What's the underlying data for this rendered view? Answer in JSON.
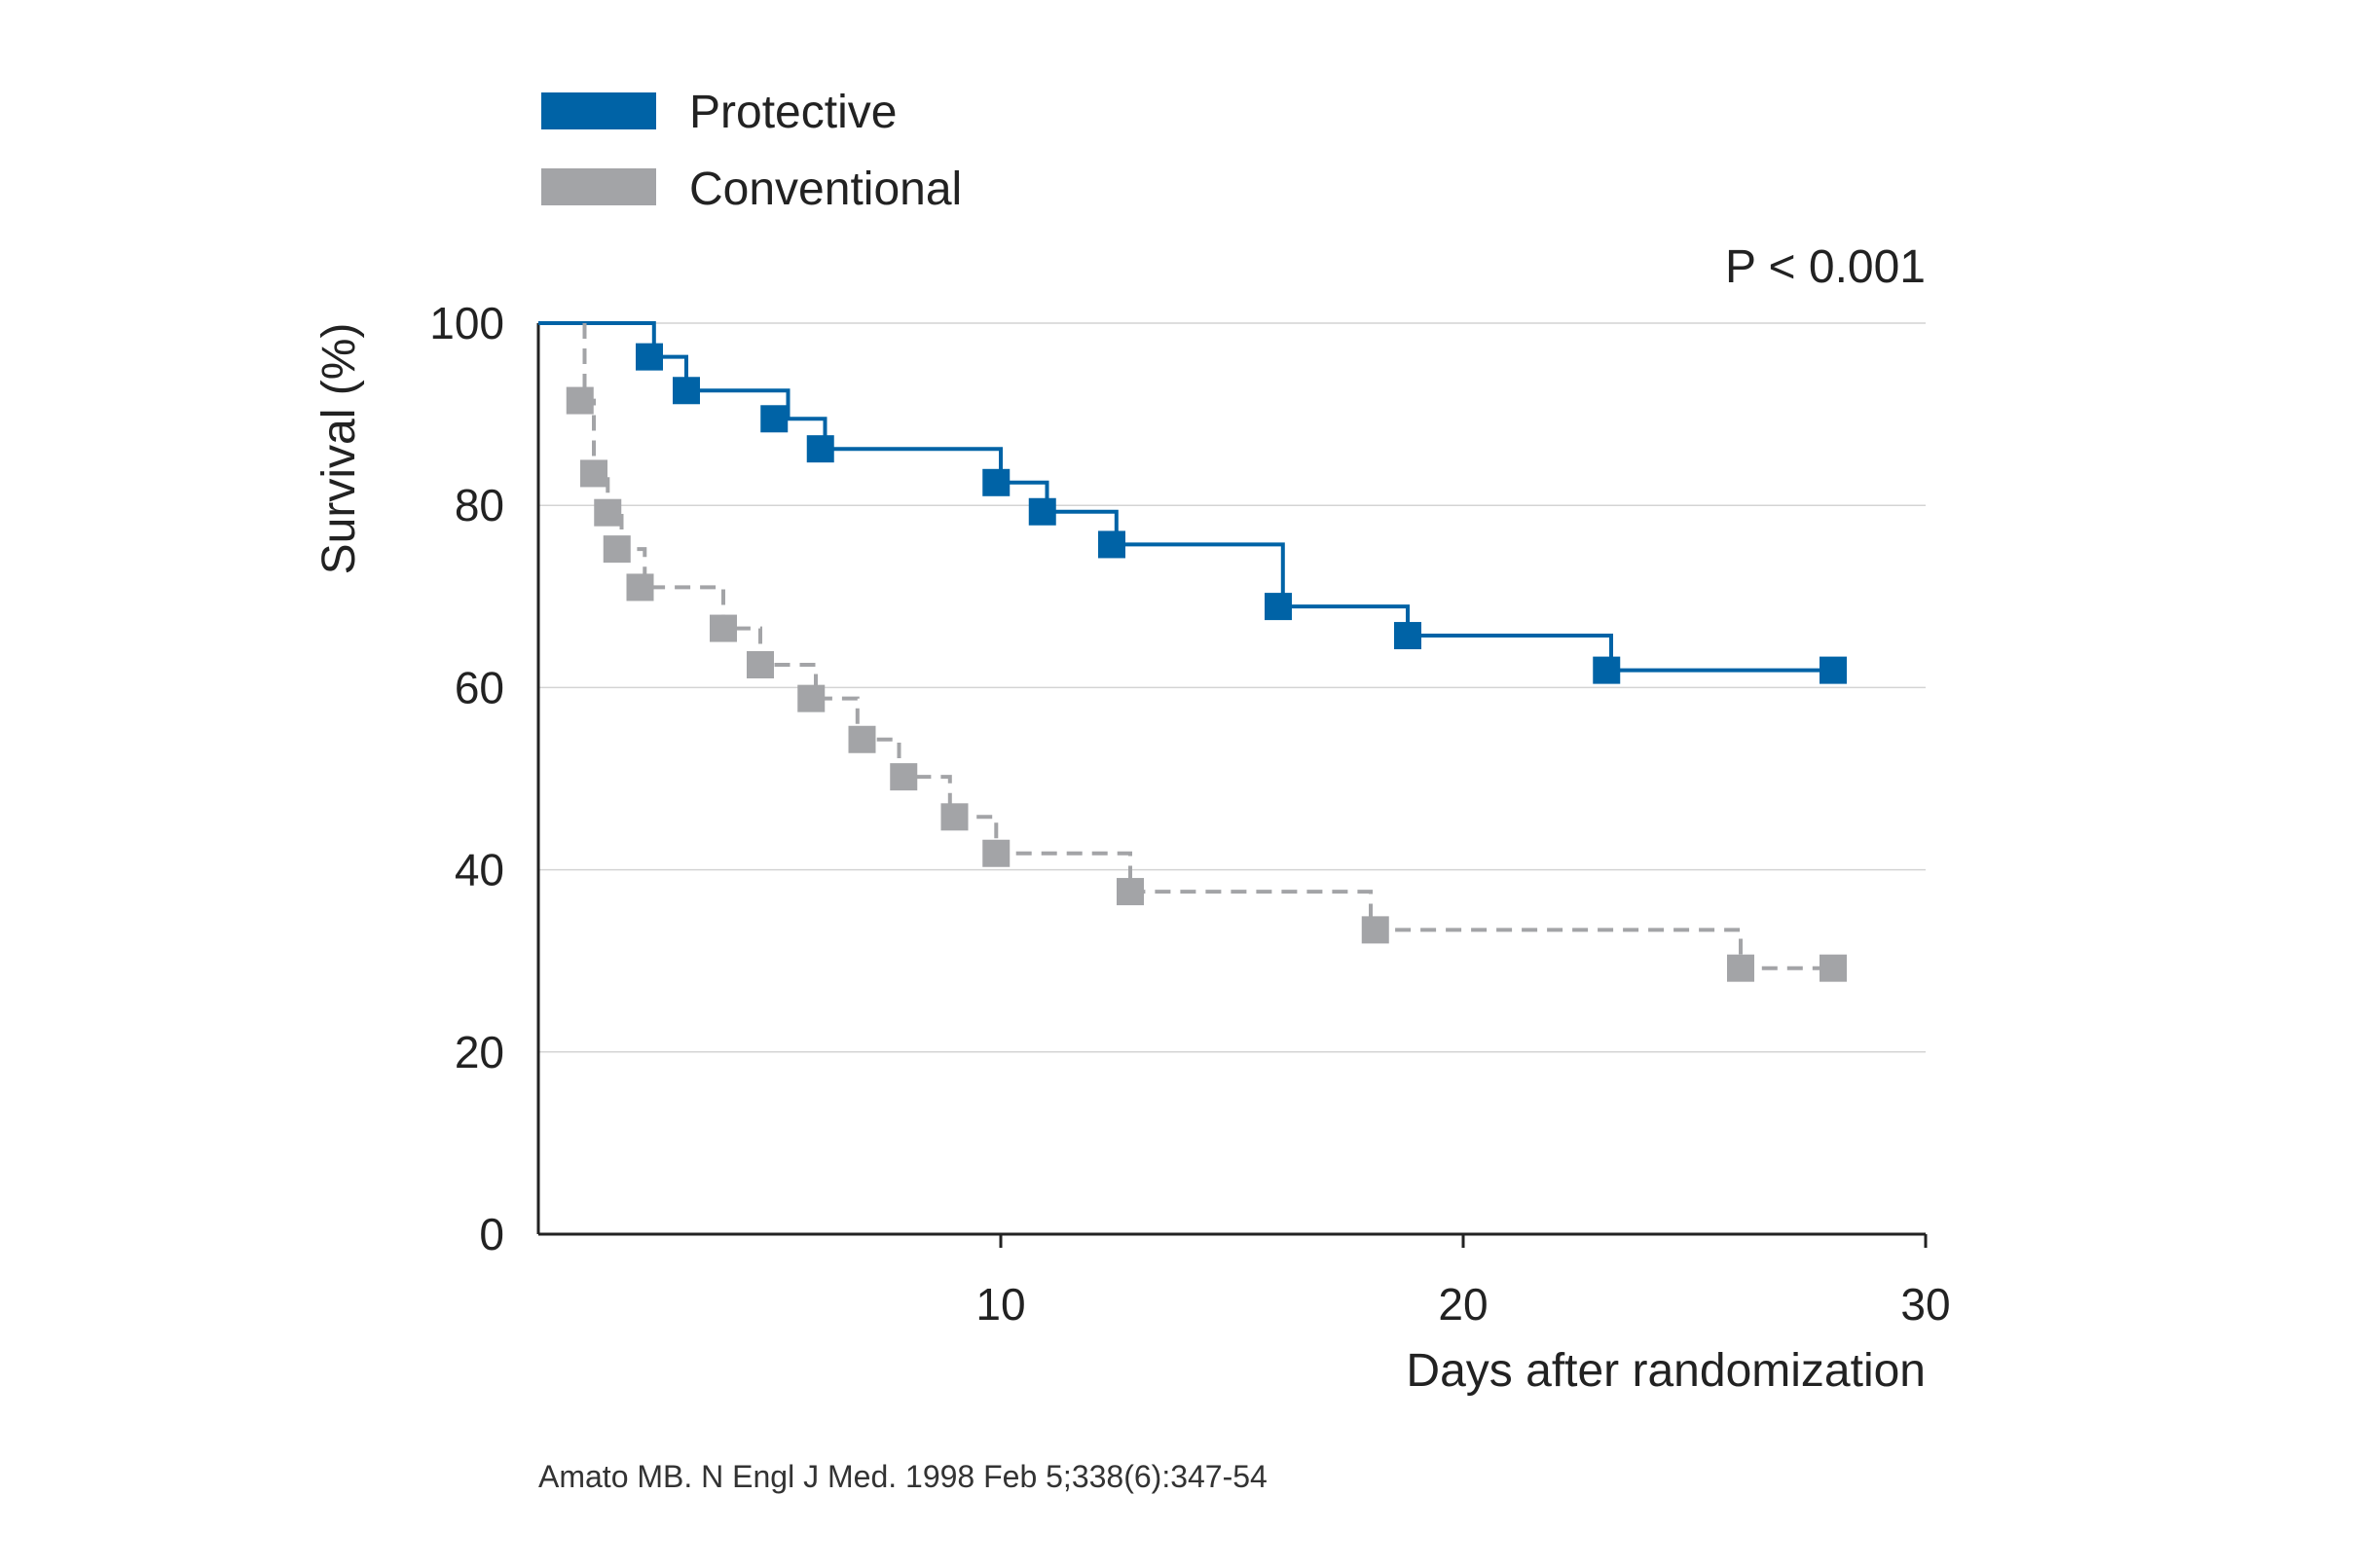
{
  "chart_data": {
    "type": "line",
    "title": "",
    "xlabel": "Days after randomization",
    "ylabel": "Survival (%)",
    "xlim": [
      0,
      30
    ],
    "ylim": [
      0,
      100
    ],
    "x_ticks": [
      10,
      20,
      30
    ],
    "y_ticks": [
      0,
      20,
      40,
      60,
      80,
      100
    ],
    "grid": "horizontal",
    "legend_position": "top-left",
    "annotation": "P < 0.001",
    "citation": "Amato MB. N Engl J Med. 1998 Feb 5;338(6):347-54",
    "series": [
      {
        "name": "Protective",
        "color": "#0063a6",
        "line_style": "solid",
        "steps": [
          [
            0,
            100
          ],
          [
            2.5,
            100
          ],
          [
            2.5,
            96.3
          ],
          [
            3.2,
            96.3
          ],
          [
            3.2,
            92.6
          ],
          [
            5.4,
            92.6
          ],
          [
            5.4,
            89.5
          ],
          [
            6.2,
            89.5
          ],
          [
            6.2,
            86.2
          ],
          [
            10.0,
            86.2
          ],
          [
            10.0,
            82.5
          ],
          [
            11.0,
            82.5
          ],
          [
            11.0,
            79.3
          ],
          [
            12.5,
            79.3
          ],
          [
            12.5,
            75.7
          ],
          [
            16.1,
            75.7
          ],
          [
            16.1,
            68.9
          ],
          [
            18.8,
            68.9
          ],
          [
            18.8,
            65.7
          ],
          [
            23.2,
            65.7
          ],
          [
            23.2,
            61.9
          ],
          [
            28.0,
            61.9
          ]
        ],
        "points": [
          [
            2.4,
            96.3
          ],
          [
            3.2,
            92.6
          ],
          [
            5.1,
            89.5
          ],
          [
            6.1,
            86.2
          ],
          [
            9.9,
            82.5
          ],
          [
            10.9,
            79.3
          ],
          [
            12.4,
            75.7
          ],
          [
            16.0,
            68.9
          ],
          [
            18.8,
            65.7
          ],
          [
            23.1,
            61.9
          ],
          [
            28.0,
            61.9
          ]
        ]
      },
      {
        "name": "Conventional",
        "color": "#a3a4a7",
        "line_style": "dashed",
        "steps": [
          [
            1.0,
            100
          ],
          [
            1.0,
            91.5
          ],
          [
            1.2,
            91.5
          ],
          [
            1.2,
            83.5
          ],
          [
            1.5,
            83.5
          ],
          [
            1.5,
            79.2
          ],
          [
            1.8,
            79.2
          ],
          [
            1.8,
            75.2
          ],
          [
            2.3,
            75.2
          ],
          [
            2.3,
            71.0
          ],
          [
            4.0,
            71.0
          ],
          [
            4.0,
            66.5
          ],
          [
            4.8,
            66.5
          ],
          [
            4.8,
            62.5
          ],
          [
            6.0,
            62.5
          ],
          [
            6.0,
            58.8
          ],
          [
            6.9,
            58.8
          ],
          [
            6.9,
            54.3
          ],
          [
            7.8,
            54.3
          ],
          [
            7.8,
            50.2
          ],
          [
            8.9,
            50.2
          ],
          [
            8.9,
            45.8
          ],
          [
            9.9,
            45.8
          ],
          [
            9.9,
            41.8
          ],
          [
            12.8,
            41.8
          ],
          [
            12.8,
            37.6
          ],
          [
            18.0,
            37.6
          ],
          [
            18.0,
            33.4
          ],
          [
            26.0,
            33.4
          ],
          [
            26.0,
            29.2
          ],
          [
            28.0,
            29.2
          ]
        ],
        "points": [
          [
            0.9,
            91.5
          ],
          [
            1.2,
            83.5
          ],
          [
            1.5,
            79.2
          ],
          [
            1.7,
            75.2
          ],
          [
            2.2,
            71.0
          ],
          [
            4.0,
            66.5
          ],
          [
            4.8,
            62.5
          ],
          [
            5.9,
            58.8
          ],
          [
            7.0,
            54.3
          ],
          [
            7.9,
            50.2
          ],
          [
            9.0,
            45.8
          ],
          [
            9.9,
            41.8
          ],
          [
            12.8,
            37.6
          ],
          [
            18.1,
            33.4
          ],
          [
            26.0,
            29.2
          ],
          [
            28.0,
            29.2
          ]
        ]
      }
    ]
  }
}
